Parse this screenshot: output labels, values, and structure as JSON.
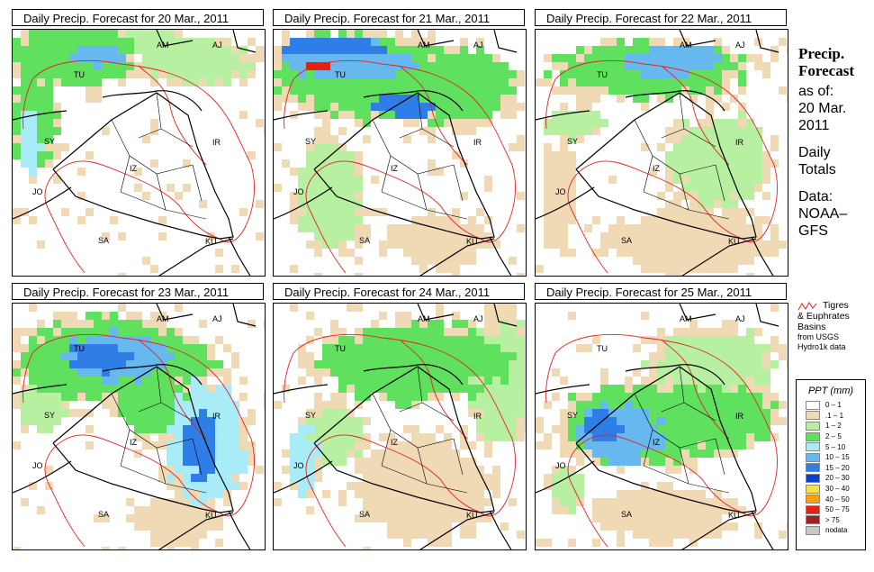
{
  "panels": [
    {
      "title": "Daily Precip. Forecast for  20 Mar., 2011"
    },
    {
      "title": "Daily Precip. Forecast for  21 Mar., 2011"
    },
    {
      "title": "Daily Precip. Forecast for  22 Mar., 2011"
    },
    {
      "title": "Daily Precip. Forecast for  23 Mar., 2011"
    },
    {
      "title": "Daily Precip. Forecast for  24 Mar., 2011"
    },
    {
      "title": "Daily Precip. Forecast for  25 Mar., 2011"
    }
  ],
  "map_labels": {
    "am": "AM",
    "aj": "AJ",
    "tu": "TU",
    "sy": "SY",
    "ir": "IR",
    "jo": "JO",
    "sa": "SA",
    "ku": "KU",
    "iz": "IZ"
  },
  "sidebar": {
    "heading_line1": "Precip.",
    "heading_line2": "Forecast",
    "asof_line1": "as of:",
    "asof_line2": "20 Mar.",
    "asof_line3": "2011",
    "totals_line1": "Daily",
    "totals_line2": "Totals",
    "data_line1": "Data:",
    "data_line2": "NOAA–",
    "data_line3": "GFS"
  },
  "basin_key": {
    "line1": "Tigres",
    "line2": "& Euphrates",
    "line3": "Basins",
    "line4": "from USGS",
    "line5": "Hydro1k data"
  },
  "legend": {
    "title": "PPT (mm)",
    "items": [
      {
        "label": "0 – 1",
        "color": "#ffffff"
      },
      {
        "label": ".1 – 1",
        "color": "#f0d9b5"
      },
      {
        "label": "1 – 2",
        "color": "#b7f0a0"
      },
      {
        "label": "2 – 5",
        "color": "#5fe05f"
      },
      {
        "label": "5 – 10",
        "color": "#a8ecf8"
      },
      {
        "label": "10 – 15",
        "color": "#68b8f0"
      },
      {
        "label": "15 – 20",
        "color": "#2f7ee8"
      },
      {
        "label": "20 – 30",
        "color": "#0a3fd0"
      },
      {
        "label": "30 – 40",
        "color": "#ffe040"
      },
      {
        "label": "40 – 50",
        "color": "#ffa000"
      },
      {
        "label": "50 – 75",
        "color": "#e82010"
      },
      {
        "label": "> 75",
        "color": "#a02020"
      },
      {
        "label": "nodata",
        "color": "#c8c8c8"
      }
    ]
  }
}
